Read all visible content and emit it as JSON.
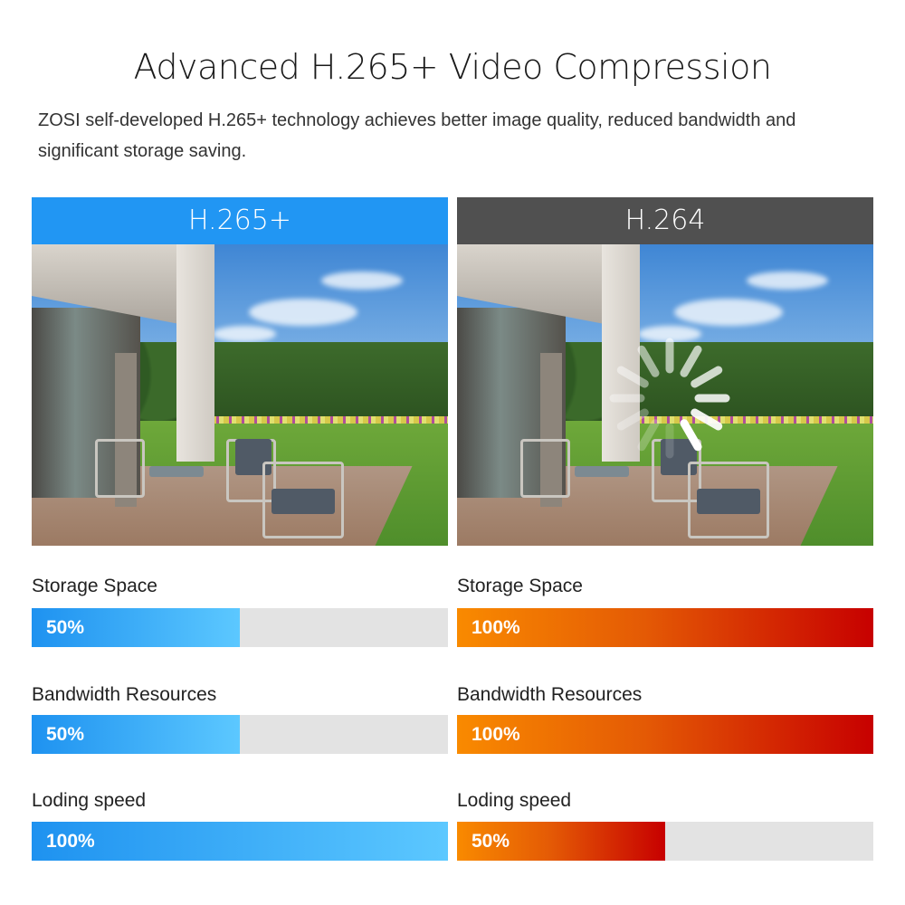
{
  "header": {
    "title": "Advanced H.265+ Video Compression",
    "subtitle": "ZOSI self-developed H.265+ technology achieves better image quality, reduced bandwidth and significant storage saving."
  },
  "colors": {
    "h265_header": "#2196f3",
    "h264_header": "#505050",
    "blue_start": "#1e92f0",
    "blue_end": "#5cc8ff",
    "red_start": "#f98a00",
    "red_end": "#c70000",
    "track": "#e3e3e3"
  },
  "panels": [
    {
      "label": "H.265+",
      "icon": "none",
      "metrics": [
        {
          "name": "Storage Space",
          "value": "50%",
          "fraction": 0.5
        },
        {
          "name": "Bandwidth Resources",
          "value": "50%",
          "fraction": 0.5
        },
        {
          "name": "Loding speed",
          "value": "100%",
          "fraction": 1.0
        }
      ]
    },
    {
      "label": "H.264",
      "icon": "loading-spinner-icon",
      "metrics": [
        {
          "name": "Storage Space",
          "value": "100%",
          "fraction": 1.0
        },
        {
          "name": "Bandwidth Resources",
          "value": "100%",
          "fraction": 1.0
        },
        {
          "name": "Loding speed",
          "value": "50%",
          "fraction": 0.5
        }
      ]
    }
  ]
}
